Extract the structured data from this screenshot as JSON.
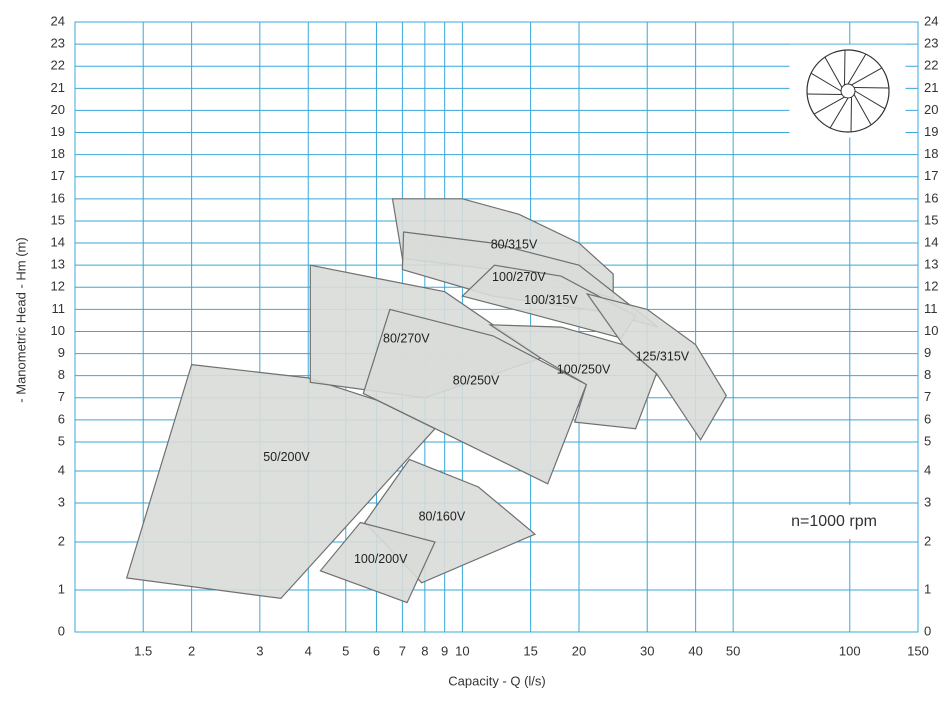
{
  "chart_data": {
    "type": "region",
    "x_label": "Capacity - Q (l/s)",
    "y_label": "- Manometric Head - Hm (m)",
    "annotation": "n=1000 rpm",
    "xscale": "log",
    "xlim": [
      1,
      150
    ],
    "xticks": [
      1.5,
      2,
      3,
      4,
      5,
      6,
      7,
      8,
      9,
      10,
      15,
      20,
      30,
      40,
      50,
      100,
      150
    ],
    "ylim": [
      0,
      24
    ],
    "yticks": [
      0,
      1,
      2,
      3,
      4,
      5,
      6,
      7,
      8,
      9,
      10,
      11,
      12,
      13,
      14,
      15,
      16,
      17,
      18,
      19,
      20,
      21,
      22,
      23,
      24
    ],
    "grid": true,
    "grid_color": "#3aa8da",
    "fill_color": "#d8dbd8",
    "edge_color": "#707070",
    "series": [
      {
        "name": "50/200V",
        "x": [
          2,
          4,
          6,
          8.5,
          3.4,
          1.36
        ],
        "y": [
          8.5,
          7.9,
          6.9,
          5.6,
          0.8,
          1.25
        ]
      },
      {
        "name": "80/270V",
        "x": [
          4.05,
          9,
          16,
          8,
          4.05
        ],
        "y": [
          13,
          11.8,
          8.8,
          7,
          7.7
        ]
      },
      {
        "name": "80/250V",
        "x": [
          6.5,
          12,
          20.9,
          16.6,
          5.55
        ],
        "y": [
          11,
          9.8,
          7.6,
          3.6,
          7.2
        ]
      },
      {
        "name": "80/315V",
        "x": [
          6.6,
          10,
          14,
          20,
          24.5,
          24.5,
          15,
          7
        ],
        "y": [
          16,
          16,
          15.3,
          14,
          12.6,
          11.5,
          12.6,
          13.3
        ]
      },
      {
        "name": "100/270V",
        "x": [
          7.05,
          12,
          20,
          32,
          23,
          12,
          7
        ],
        "y": [
          14.5,
          14,
          13,
          10.2,
          10.9,
          11.6,
          12.8
        ]
      },
      {
        "name": "100/315V",
        "x": [
          12.1,
          18,
          28,
          25.7,
          15,
          10
        ],
        "y": [
          13,
          12.5,
          10.7,
          9.7,
          10.8,
          11.6
        ]
      },
      {
        "name": "100/250V",
        "x": [
          11.8,
          18,
          26,
          31.7,
          28,
          19.5,
          20.9,
          15.9
        ],
        "y": [
          10.3,
          10.2,
          9.4,
          8.1,
          5.6,
          5.9,
          7.6,
          8.8
        ]
      },
      {
        "name": "125/315V",
        "x": [
          21,
          30,
          40,
          48,
          41.2,
          31.7,
          26
        ],
        "y": [
          11.7,
          11,
          9.4,
          7.1,
          5.1,
          8.1,
          9.4
        ]
      },
      {
        "name": "80/160V",
        "x": [
          7.3,
          11,
          15.4,
          7.85,
          5.6
        ],
        "y": [
          4.4,
          3.5,
          2.2,
          1.15,
          2.5
        ]
      },
      {
        "name": "100/200V",
        "x": [
          5.45,
          8.5,
          7.2,
          4.3
        ],
        "y": [
          2.5,
          2,
          0.7,
          1.4
        ]
      }
    ]
  }
}
